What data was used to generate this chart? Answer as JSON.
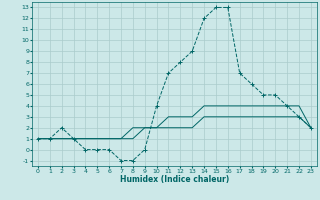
{
  "title": "",
  "xlabel": "Humidex (Indice chaleur)",
  "ylabel": "",
  "background_color": "#cce8e8",
  "grid_color": "#aacccc",
  "line_color": "#006666",
  "xlim": [
    -0.5,
    23.5
  ],
  "ylim": [
    -1.5,
    13.5
  ],
  "xticks": [
    0,
    1,
    2,
    3,
    4,
    5,
    6,
    7,
    8,
    9,
    10,
    11,
    12,
    13,
    14,
    15,
    16,
    17,
    18,
    19,
    20,
    21,
    22,
    23
  ],
  "yticks": [
    -1,
    0,
    1,
    2,
    3,
    4,
    5,
    6,
    7,
    8,
    9,
    10,
    11,
    12,
    13
  ],
  "curve1_x": [
    0,
    1,
    2,
    3,
    4,
    5,
    6,
    7,
    8,
    9,
    10,
    11,
    12,
    13,
    14,
    15,
    16,
    17,
    18,
    19,
    20,
    21,
    22,
    23
  ],
  "curve1_y": [
    1,
    1,
    2,
    1,
    0,
    0,
    0,
    -1,
    -1,
    0,
    4,
    7,
    8,
    9,
    12,
    13,
    13,
    7,
    6,
    5,
    5,
    4,
    3,
    2
  ],
  "curve2_x": [
    0,
    1,
    2,
    3,
    4,
    5,
    6,
    7,
    8,
    9,
    10,
    11,
    12,
    13,
    14,
    15,
    16,
    17,
    18,
    19,
    20,
    21,
    22,
    23
  ],
  "curve2_y": [
    1,
    1,
    1,
    1,
    1,
    1,
    1,
    1,
    2,
    2,
    2,
    3,
    3,
    3,
    4,
    4,
    4,
    4,
    4,
    4,
    4,
    4,
    4,
    2
  ],
  "curve3_x": [
    0,
    1,
    2,
    3,
    4,
    5,
    6,
    7,
    8,
    9,
    10,
    11,
    12,
    13,
    14,
    15,
    16,
    17,
    18,
    19,
    20,
    21,
    22,
    23
  ],
  "curve3_y": [
    1,
    1,
    1,
    1,
    1,
    1,
    1,
    1,
    1,
    2,
    2,
    2,
    2,
    2,
    3,
    3,
    3,
    3,
    3,
    3,
    3,
    3,
    3,
    2
  ]
}
